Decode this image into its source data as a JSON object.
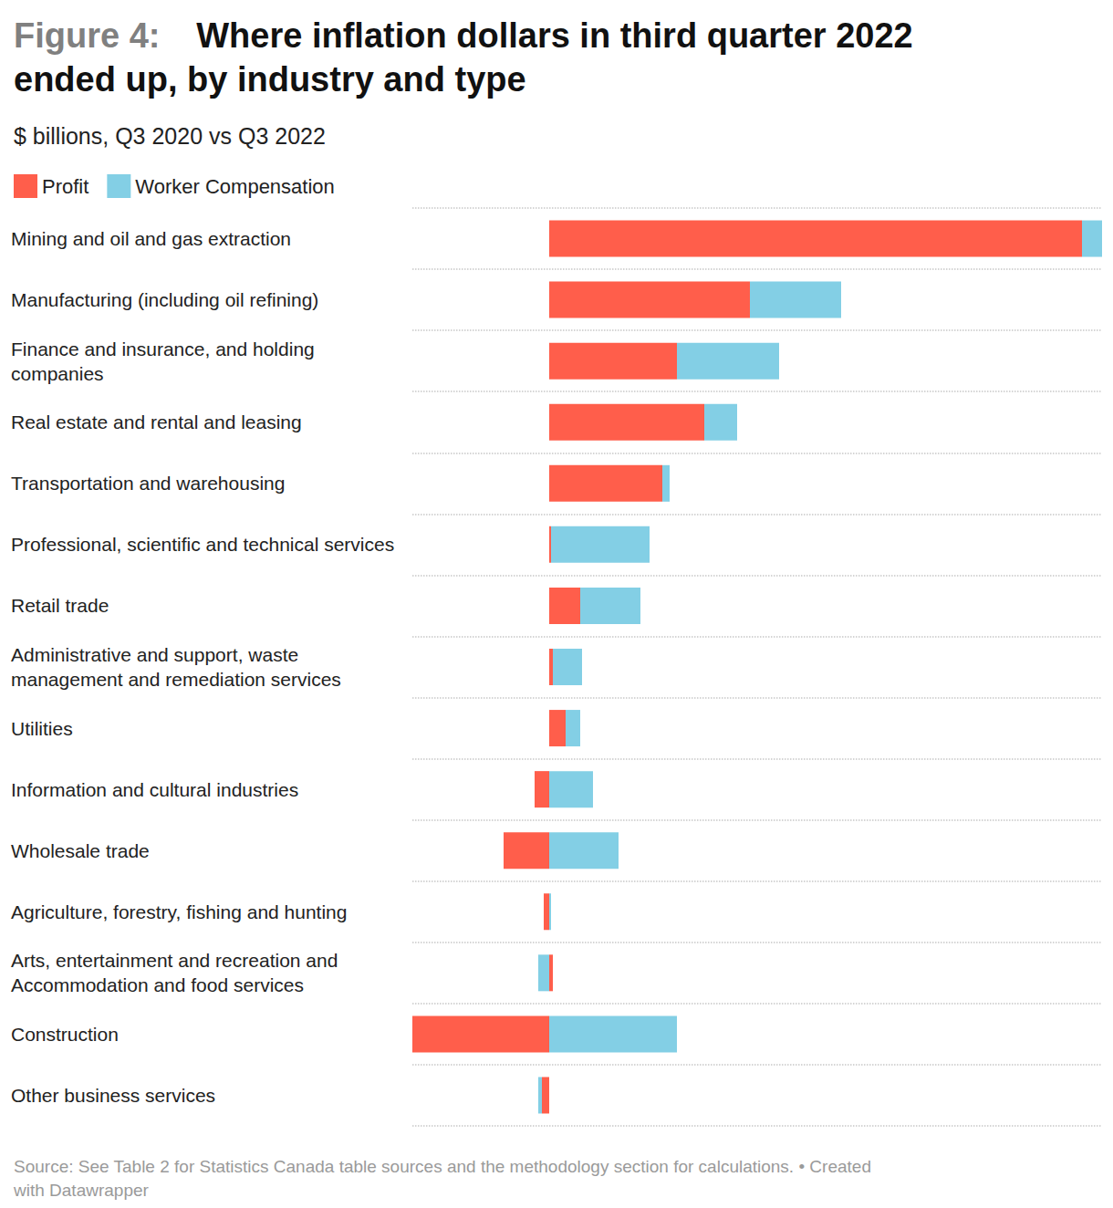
{
  "chart_data": {
    "type": "bar",
    "figure_label": "Figure 4:",
    "title": "Where inflation dollars in third quarter 2022 ended up, by industry and type",
    "subtitle": "$ billions, Q3 2020 vs Q3 2022",
    "source": "Source: See Table 2 for Statistics Canada table sources and the methodology section for calculations. • Created with Datawrapper",
    "orientation": "horizontal",
    "stacked": true,
    "grid": true,
    "legend": "top-left",
    "tick_labels": "y",
    "data_labels": false,
    "categories": [
      "Mining and oil and gas extraction",
      "Manufacturing (including oil refining)",
      "Finance and insurance, and holding companies",
      "Real estate and rental and leasing",
      "Transportation and warehousing",
      "Professional, scientific and technical services",
      "Retail trade",
      "Administrative and support, waste management and remediation services",
      "Utilities",
      "Information and cultural industries",
      "Wholesale trade",
      "Agriculture, forestry, fishing and hunting",
      "Arts, entertainment and recreation and Accommodation and food services",
      "Construction",
      "Other business services"
    ],
    "series": [
      {
        "name": "Profit",
        "color": "#ff5e4b",
        "values": [
          29.2,
          11.0,
          7.0,
          8.5,
          6.2,
          0.1,
          1.7,
          0.2,
          0.9,
          -0.8,
          -2.5,
          -0.3,
          0.2,
          -7.5,
          -0.4
        ]
      },
      {
        "name": "Worker Compensation",
        "color": "#83cfe5",
        "values": [
          1.1,
          5.0,
          5.6,
          1.8,
          0.4,
          5.4,
          3.3,
          1.6,
          0.8,
          2.4,
          3.8,
          0.1,
          -0.6,
          7.0,
          -0.2
        ]
      }
    ],
    "xlim": [
      -7.5,
      30.3
    ]
  }
}
